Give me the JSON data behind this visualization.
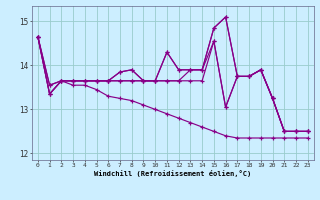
{
  "xlabel": "Windchill (Refroidissement éolien,°C)",
  "background_color": "#cceeff",
  "grid_color": "#99cccc",
  "line_color": "#880088",
  "xlim": [
    -0.5,
    23.5
  ],
  "ylim": [
    11.85,
    15.35
  ],
  "yticks": [
    12,
    13,
    14,
    15
  ],
  "xticks": [
    0,
    1,
    2,
    3,
    4,
    5,
    6,
    7,
    8,
    9,
    10,
    11,
    12,
    13,
    14,
    15,
    16,
    17,
    18,
    19,
    20,
    21,
    22,
    23
  ],
  "series": [
    [
      14.65,
      13.55,
      13.65,
      13.65,
      13.65,
      13.65,
      13.65,
      13.85,
      13.9,
      13.65,
      13.65,
      14.3,
      13.9,
      13.9,
      13.9,
      14.55,
      13.05,
      13.75,
      13.75,
      13.9,
      13.25,
      12.5,
      12.5,
      12.5
    ],
    [
      14.65,
      13.55,
      13.65,
      13.65,
      13.65,
      13.65,
      13.65,
      13.85,
      13.9,
      13.65,
      13.65,
      14.3,
      13.9,
      13.9,
      13.9,
      14.85,
      15.1,
      13.75,
      13.75,
      13.9,
      13.25,
      12.5,
      12.5,
      12.5
    ],
    [
      14.65,
      13.35,
      13.65,
      13.65,
      13.65,
      13.65,
      13.65,
      13.65,
      13.65,
      13.65,
      13.65,
      13.65,
      13.65,
      13.9,
      13.9,
      14.85,
      15.1,
      13.75,
      13.75,
      13.9,
      13.25,
      12.5,
      12.5,
      12.5
    ],
    [
      14.65,
      13.35,
      13.65,
      13.55,
      13.55,
      13.45,
      13.3,
      13.25,
      13.2,
      13.1,
      13.0,
      12.9,
      12.8,
      12.7,
      12.6,
      12.5,
      12.4,
      12.35,
      12.35,
      12.35,
      12.35,
      12.35,
      12.35,
      12.35
    ],
    [
      14.65,
      13.35,
      13.65,
      13.65,
      13.65,
      13.65,
      13.65,
      13.65,
      13.65,
      13.65,
      13.65,
      13.65,
      13.65,
      13.65,
      13.65,
      14.55,
      13.05,
      13.75,
      13.75,
      13.9,
      13.25,
      12.5,
      12.5,
      12.5
    ]
  ]
}
